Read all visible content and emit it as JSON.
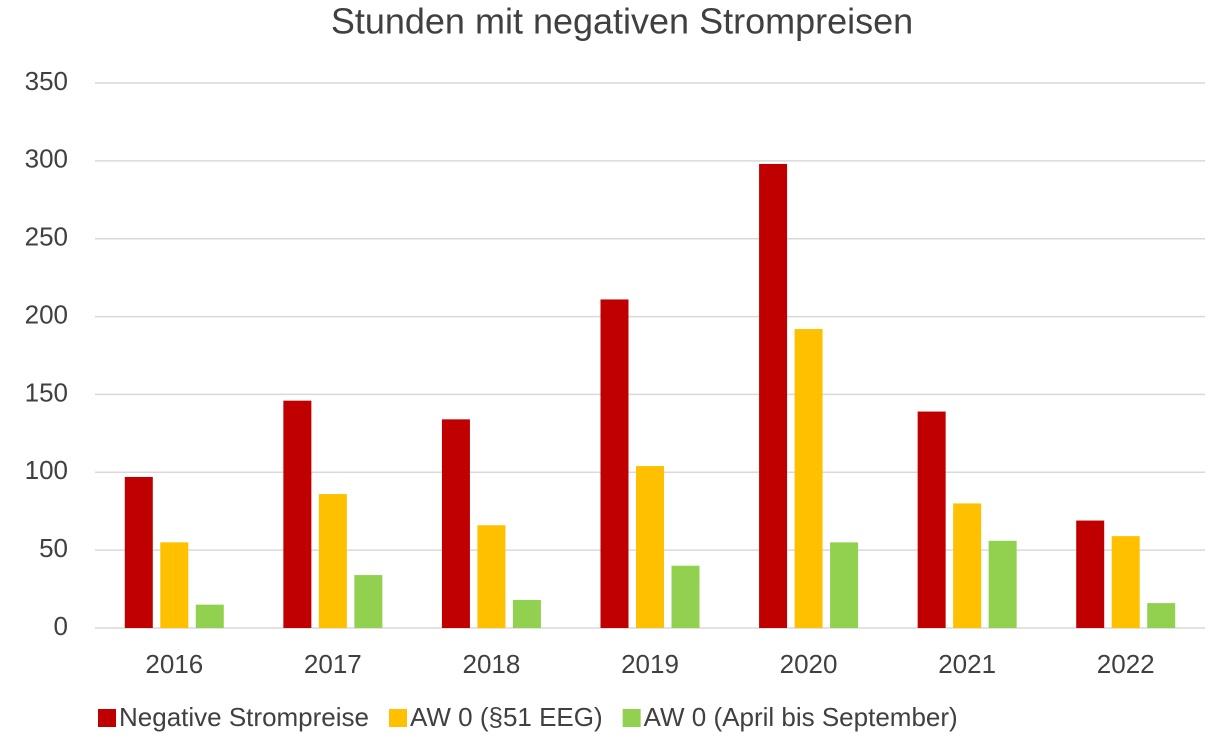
{
  "chart_data": {
    "type": "bar",
    "title": "Stunden mit negativen Strompreisen",
    "categories": [
      "2016",
      "2017",
      "2018",
      "2019",
      "2020",
      "2021",
      "2022"
    ],
    "series": [
      {
        "name": "Negative Strompreise",
        "color": "#c00000",
        "values": [
          97,
          146,
          134,
          211,
          298,
          139,
          69
        ]
      },
      {
        "name": "AW 0 (§51 EEG)",
        "color": "#ffc000",
        "values": [
          55,
          86,
          66,
          104,
          192,
          80,
          59
        ]
      },
      {
        "name": "AW 0 (April bis September)",
        "color": "#92d050",
        "values": [
          15,
          34,
          18,
          40,
          55,
          56,
          16
        ]
      }
    ],
    "ylim": [
      0,
      350
    ],
    "yticks": [
      0,
      50,
      100,
      150,
      200,
      250,
      300,
      350
    ],
    "grid": true,
    "legend": "bottom"
  }
}
